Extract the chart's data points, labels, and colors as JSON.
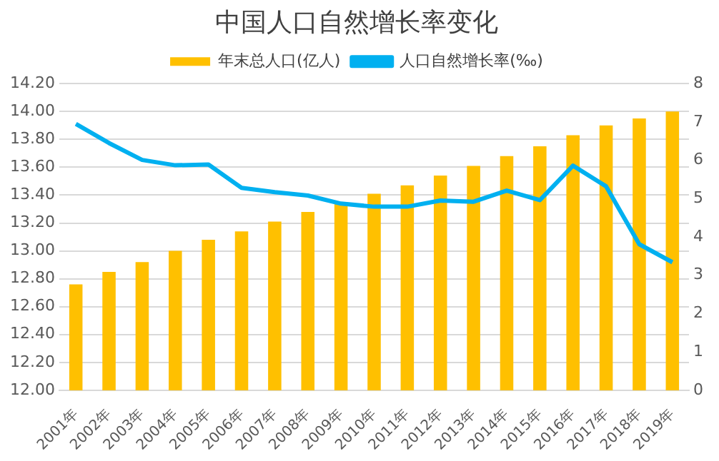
{
  "chart_data": {
    "type": "bar",
    "title": "中国人口自然增长率变化",
    "categories": [
      "2001年",
      "2002年",
      "2003年",
      "2004年",
      "2005年",
      "2006年",
      "2007年",
      "2008年",
      "2009年",
      "2010年",
      "2011年",
      "2012年",
      "2013年",
      "2014年",
      "2015年",
      "2016年",
      "2017年",
      "2018年",
      "2019年"
    ],
    "series": [
      {
        "name": "年末总人口(亿人)",
        "color": "#ffc000",
        "values": [
          12.76,
          12.85,
          12.92,
          13.0,
          13.08,
          13.14,
          13.21,
          13.28,
          13.35,
          13.41,
          13.47,
          13.54,
          13.61,
          13.68,
          13.75,
          13.83,
          13.9,
          13.95,
          14.0
        ]
      },
      {
        "name": "人口自然增长率(‰)",
        "type": "line",
        "axis": "y2",
        "color": "#00b0f0",
        "values": [
          6.95,
          6.45,
          6.01,
          5.87,
          5.89,
          5.28,
          5.17,
          5.08,
          4.87,
          4.79,
          4.79,
          4.95,
          4.92,
          5.21,
          4.96,
          5.86,
          5.32,
          3.81,
          3.34
        ]
      }
    ],
    "ylim": [
      12,
      14.2
    ],
    "yticks": [
      {
        "value": 12,
        "label": "12.00"
      },
      {
        "value": 12.2,
        "label": "12.20"
      },
      {
        "value": 12.4,
        "label": "12.40"
      },
      {
        "value": 12.6,
        "label": "12.60"
      },
      {
        "value": 12.8,
        "label": "12.80"
      },
      {
        "value": 13,
        "label": "13.00"
      },
      {
        "value": 13.2,
        "label": "13.20"
      },
      {
        "value": 13.4,
        "label": "13.40"
      },
      {
        "value": 13.6,
        "label": "13.60"
      },
      {
        "value": 13.8,
        "label": "13.80"
      },
      {
        "value": 14,
        "label": "14.00"
      },
      {
        "value": 14.2,
        "label": "14.20"
      }
    ],
    "y2lim": [
      0,
      8
    ],
    "y2ticks": [
      0,
      1,
      2,
      3,
      4,
      5,
      6,
      7,
      8
    ],
    "grid": "y",
    "legend": "top",
    "marker": "none",
    "line_style": "solid"
  }
}
